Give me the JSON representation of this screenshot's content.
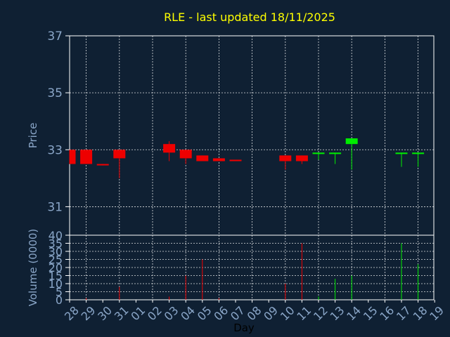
{
  "chart_data": {
    "type": "candlestick",
    "title": "RLE - last updated 18/11/2025",
    "price_panel": {
      "ylabel": "Price",
      "ylim": [
        30,
        37
      ],
      "yticks": [
        "37",
        "35",
        "33",
        "31"
      ],
      "grid": true
    },
    "volume_panel": {
      "ylabel": "Volume (0000)",
      "ylim": [
        0,
        40
      ],
      "yticks": [
        "40",
        "35",
        "30",
        "25",
        "20",
        "15",
        "10",
        "5",
        "0"
      ],
      "grid": true
    },
    "xlabel": "Day",
    "xticks": [
      "28",
      "29",
      "30",
      "31",
      "01",
      "02",
      "03",
      "04",
      "05",
      "06",
      "07",
      "08",
      "09",
      "10",
      "11",
      "12",
      "13",
      "14",
      "15",
      "16",
      "17",
      "18",
      "19"
    ],
    "candles": [
      {
        "day": "28",
        "open": 33.0,
        "close": 32.5,
        "high": 33.0,
        "low": 32.5,
        "volume": 0
      },
      {
        "day": "29",
        "open": 33.0,
        "close": 32.5,
        "high": 33.0,
        "low": 32.5,
        "volume": 1
      },
      {
        "day": "30",
        "open": 32.5,
        "close": 32.45,
        "high": 32.5,
        "low": 32.45,
        "volume": 0
      },
      {
        "day": "31",
        "open": 33.0,
        "close": 32.7,
        "high": 33.0,
        "low": 32.0,
        "volume": 8
      },
      {
        "day": "03",
        "open": 33.2,
        "close": 32.9,
        "high": 33.3,
        "low": 32.6,
        "volume": 2
      },
      {
        "day": "04",
        "open": 33.0,
        "close": 32.7,
        "high": 33.0,
        "low": 32.5,
        "volume": 15
      },
      {
        "day": "05",
        "open": 32.8,
        "close": 32.6,
        "high": 32.8,
        "low": 32.6,
        "volume": 25
      },
      {
        "day": "06",
        "open": 32.7,
        "close": 32.6,
        "high": 32.7,
        "low": 32.6,
        "volume": 1
      },
      {
        "day": "07",
        "open": 32.65,
        "close": 32.6,
        "high": 32.65,
        "low": 32.6,
        "volume": 0
      },
      {
        "day": "10",
        "open": 32.8,
        "close": 32.6,
        "high": 32.8,
        "low": 32.3,
        "volume": 10
      },
      {
        "day": "11",
        "open": 32.8,
        "close": 32.6,
        "high": 32.8,
        "low": 32.5,
        "volume": 35
      },
      {
        "day": "12",
        "open": 32.85,
        "close": 32.9,
        "high": 32.9,
        "low": 32.65,
        "volume": 2
      },
      {
        "day": "13",
        "open": 32.85,
        "close": 32.9,
        "high": 32.9,
        "low": 32.5,
        "volume": 13
      },
      {
        "day": "14",
        "open": 33.2,
        "close": 33.4,
        "high": 33.4,
        "low": 32.3,
        "volume": 15
      },
      {
        "day": "17",
        "open": 32.85,
        "close": 32.9,
        "high": 32.9,
        "low": 32.4,
        "volume": 35
      },
      {
        "day": "18",
        "open": 32.85,
        "close": 32.9,
        "high": 32.9,
        "low": 32.4,
        "volume": 22
      }
    ]
  }
}
